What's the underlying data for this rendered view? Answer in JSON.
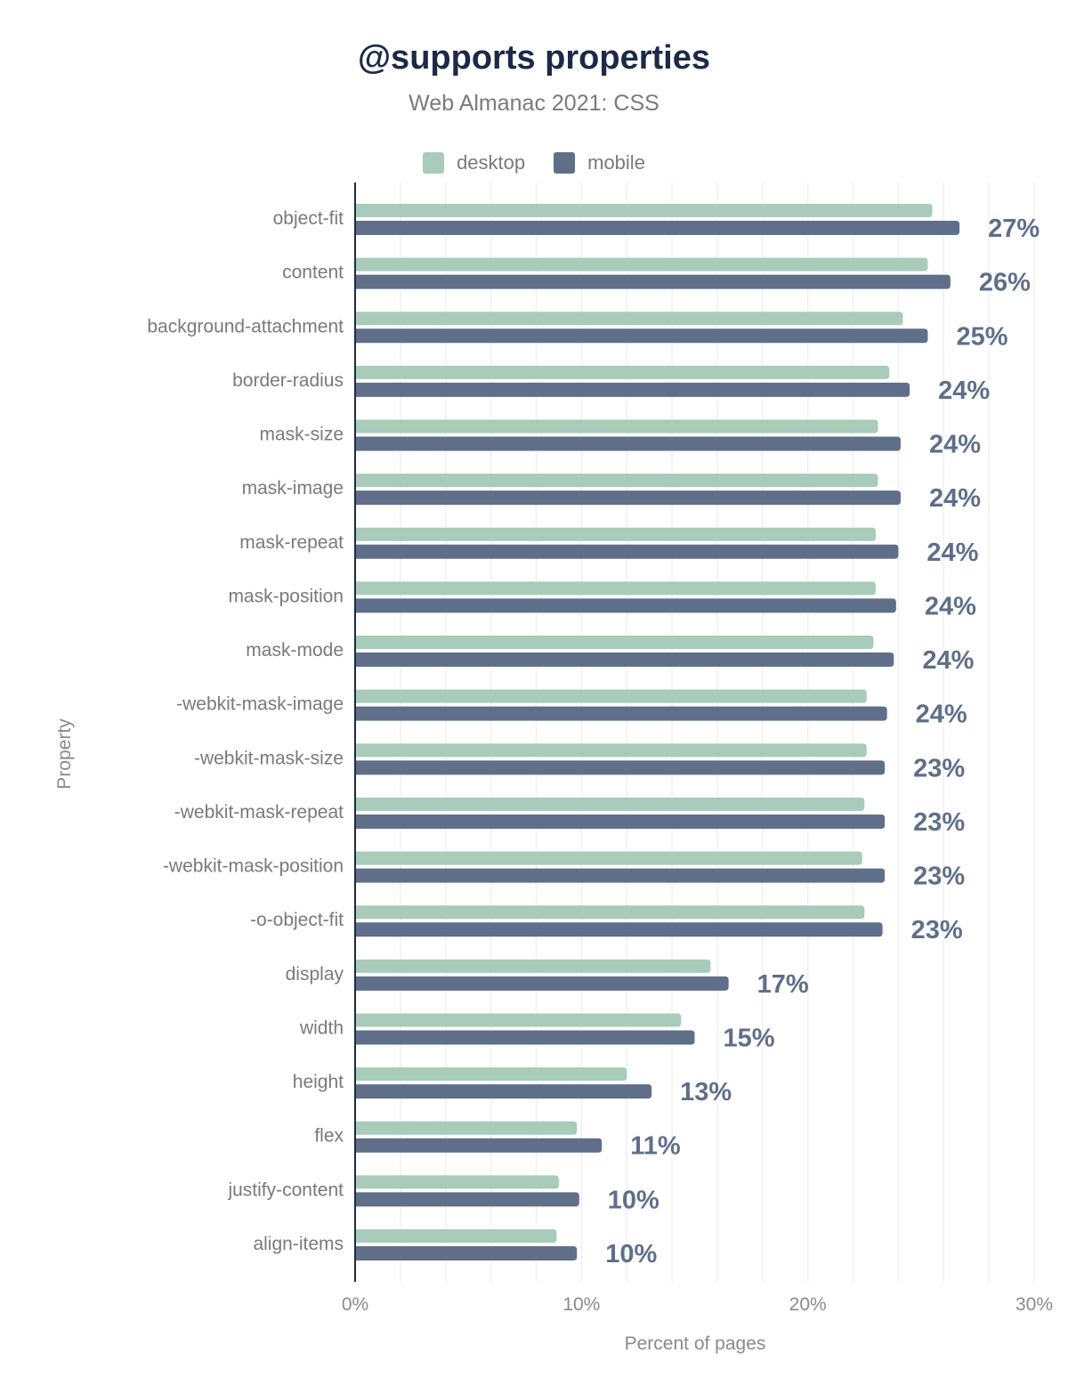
{
  "chart_data": {
    "type": "bar",
    "orientation": "horizontal",
    "title": "@supports properties",
    "subtitle": "Web Almanac 2021: CSS",
    "xlabel": "Percent of pages",
    "ylabel": "Property",
    "xlim": [
      0,
      30
    ],
    "xticks": [
      "0%",
      "10%",
      "20%",
      "30%"
    ],
    "grid": true,
    "legend_position": "top",
    "categories": [
      "object-fit",
      "content",
      "background-attachment",
      "border-radius",
      "mask-size",
      "mask-image",
      "mask-repeat",
      "mask-position",
      "mask-mode",
      "-webkit-mask-image",
      "-webkit-mask-size",
      "-webkit-mask-repeat",
      "-webkit-mask-position",
      "-o-object-fit",
      "display",
      "width",
      "height",
      "flex",
      "justify-content",
      "align-items"
    ],
    "series": [
      {
        "name": "desktop",
        "color": "#a8cbba",
        "values": [
          25.5,
          25.3,
          24.2,
          23.6,
          23.1,
          23.1,
          23.0,
          23.0,
          22.9,
          22.6,
          22.6,
          22.5,
          22.4,
          22.5,
          15.7,
          14.4,
          12.0,
          9.8,
          9.0,
          8.9
        ]
      },
      {
        "name": "mobile",
        "color": "#5f6f8a",
        "values": [
          26.7,
          26.3,
          25.3,
          24.5,
          24.1,
          24.1,
          24.0,
          23.9,
          23.8,
          23.5,
          23.4,
          23.4,
          23.4,
          23.3,
          16.5,
          15.0,
          13.1,
          10.9,
          9.9,
          9.8
        ]
      }
    ],
    "data_labels": [
      "27%",
      "26%",
      "25%",
      "24%",
      "24%",
      "24%",
      "24%",
      "24%",
      "24%",
      "24%",
      "23%",
      "23%",
      "23%",
      "23%",
      "17%",
      "15%",
      "13%",
      "11%",
      "10%",
      "10%"
    ]
  }
}
